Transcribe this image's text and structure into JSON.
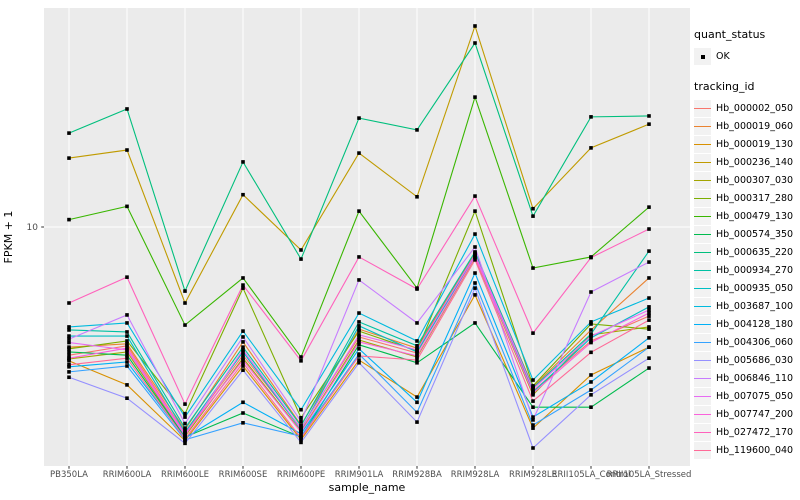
{
  "figure": {
    "panel_bg": "#EBEBEB",
    "grid_color": "#FFFFFF",
    "axis_text_color": "#4D4D4D",
    "tick_color": "#333333",
    "marker_color": "#000000",
    "legend_key_bg": "#F2F2F2"
  },
  "axes": {
    "x_label": "sample_name",
    "y_label": "FPKM + 1"
  },
  "legend": {
    "quant_status_title": "quant_status",
    "quant_status_items": [
      {
        "label": "OK"
      }
    ],
    "tracking_id_title": "tracking_id"
  },
  "chart_data": {
    "type": "line",
    "title": "",
    "xlabel": "sample_name",
    "ylabel": "FPKM + 1",
    "x_type": "categorical",
    "y_scale": "log10",
    "y_ticks": [
      {
        "value": 10,
        "label": "10"
      }
    ],
    "grid": "major",
    "legend_position": "right",
    "point_shape": "small-black-square",
    "quant_status": "OK",
    "categories": [
      "PB350LA",
      "RRIM600LA",
      "RRIM600LE",
      "RRIM600SE",
      "RRIM600PE",
      "RRIM901LA",
      "RRIM928BA",
      "RRIM928LA",
      "RRIM928LE",
      "RRII105LA_Control",
      "RRII105LA_Stressed"
    ],
    "series": [
      {
        "name": "Hb_000002_050",
        "color": "#F8766D",
        "values": [
          2.63,
          2.9,
          1.17,
          2.63,
          1.23,
          3.18,
          2.69,
          7.55,
          1.81,
          3.05,
          3.95
        ]
      },
      {
        "name": "Hb_000019_060",
        "color": "#EA8331",
        "values": [
          2.86,
          2.96,
          1.21,
          3.02,
          1.27,
          3.45,
          2.83,
          7.63,
          1.89,
          3.42,
          5.88
        ]
      },
      {
        "name": "Hb_000019_130",
        "color": "#D89000",
        "values": [
          2.48,
          1.93,
          1.08,
          2.35,
          1.09,
          2.5,
          1.7,
          4.93,
          1.23,
          2.14,
          2.86
        ]
      },
      {
        "name": "Hb_000236_140",
        "color": "#C09B00",
        "values": [
          20.5,
          22.3,
          4.53,
          14.0,
          7.87,
          21.6,
          13.7,
          81.2,
          12.1,
          22.8,
          29.2
        ]
      },
      {
        "name": "Hb_000307_030",
        "color": "#A3A500",
        "values": [
          2.53,
          2.72,
          1.13,
          2.55,
          1.19,
          3.08,
          2.58,
          7.27,
          1.74,
          3.25,
          3.53
        ]
      },
      {
        "name": "Hb_000317_280",
        "color": "#7CAE00",
        "values": [
          2.81,
          3.05,
          1.43,
          5.29,
          1.37,
          3.38,
          2.75,
          11.8,
          1.91,
          3.64,
          3.45
        ]
      },
      {
        "name": "Hb_000479_130",
        "color": "#39B600",
        "values": [
          10.8,
          12.4,
          3.6,
          5.88,
          2.58,
          11.8,
          5.29,
          38.7,
          6.52,
          7.32,
          12.3
        ]
      },
      {
        "name": "Hb_000574_350",
        "color": "#00BB4E",
        "values": [
          2.72,
          2.63,
          1.12,
          1.44,
          1.12,
          2.93,
          2.43,
          3.68,
          1.53,
          1.53,
          2.3
        ]
      },
      {
        "name": "Hb_000635_220",
        "color": "#00BF7D",
        "values": [
          26.6,
          34.2,
          5.13,
          19.7,
          7.16,
          31.1,
          27.5,
          68.0,
          11.2,
          31.5,
          31.8
        ]
      },
      {
        "name": "Hb_000934_270",
        "color": "#00C1A3",
        "values": [
          3.42,
          3.35,
          1.23,
          2.86,
          1.26,
          3.72,
          2.9,
          7.71,
          1.87,
          3.28,
          7.78
        ]
      },
      {
        "name": "Hb_000935_050",
        "color": "#00BFC4",
        "values": [
          3.21,
          3.21,
          1.18,
          2.72,
          1.21,
          3.57,
          2.72,
          7.4,
          1.79,
          3.15,
          4.35
        ]
      },
      {
        "name": "Hb_003687_100",
        "color": "#00BADE",
        "values": [
          3.53,
          3.68,
          1.38,
          3.38,
          1.49,
          4.08,
          3.05,
          9.29,
          2.03,
          3.72,
          4.77
        ]
      },
      {
        "name": "Hb_004128_180",
        "color": "#00B0F6",
        "values": [
          2.33,
          2.45,
          1.11,
          1.61,
          1.16,
          2.81,
          1.61,
          6.19,
          1.38,
          1.99,
          3.15
        ]
      },
      {
        "name": "Hb_004306_060",
        "color": "#35A2FF",
        "values": [
          2.21,
          2.35,
          1.09,
          1.3,
          1.13,
          2.66,
          1.45,
          5.58,
          1.27,
          1.83,
          2.86
        ]
      },
      {
        "name": "Hb_005686_030",
        "color": "#9590FF",
        "values": [
          2.09,
          1.68,
          1.05,
          2.25,
          1.06,
          2.43,
          1.31,
          5.29,
          1.0,
          1.74,
          2.55
        ]
      },
      {
        "name": "Hb_006846_110",
        "color": "#C77CFF",
        "values": [
          3.11,
          4.0,
          1.29,
          3.18,
          1.32,
          5.76,
          3.68,
          8.12,
          1.34,
          5.08,
          6.94
        ]
      },
      {
        "name": "Hb_007075_050",
        "color": "#E76BF3",
        "values": [
          3.0,
          2.78,
          1.14,
          2.78,
          1.22,
          3.25,
          2.78,
          7.48,
          1.85,
          3.21,
          4.21
        ]
      },
      {
        "name": "Hb_007747_200",
        "color": "#FA62DB",
        "values": [
          2.55,
          2.83,
          1.16,
          2.5,
          1.18,
          3.02,
          2.61,
          7.32,
          1.77,
          3.0,
          4.08
        ]
      },
      {
        "name": "Hb_027472_170",
        "color": "#FF62BC",
        "values": [
          4.53,
          5.93,
          1.58,
          5.46,
          2.48,
          7.32,
          5.24,
          13.8,
          3.31,
          7.27,
          9.79
        ]
      },
      {
        "name": "Hb_119600_040",
        "color": "#FF6A98",
        "values": [
          2.38,
          2.55,
          1.1,
          2.43,
          1.11,
          2.61,
          2.5,
          7.1,
          1.63,
          2.71,
          3.79
        ]
      }
    ]
  }
}
